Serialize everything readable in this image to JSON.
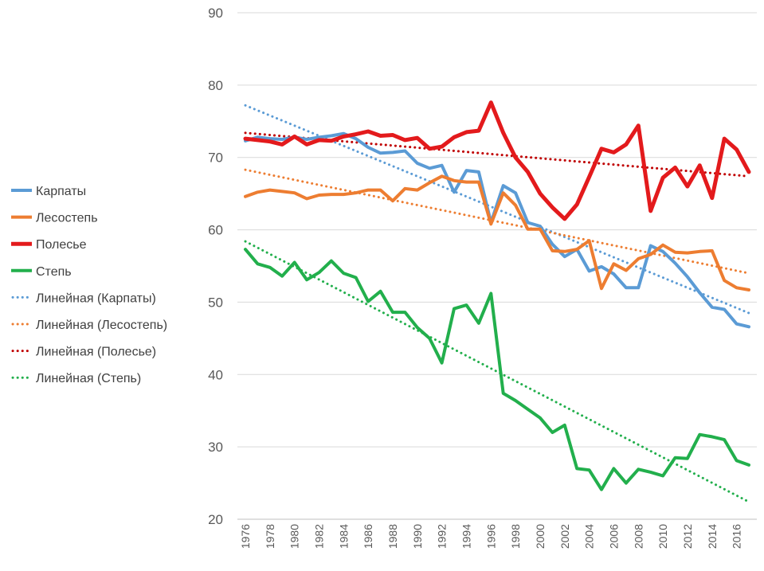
{
  "chart_data": {
    "type": "line",
    "title": "",
    "xlabel": "",
    "ylabel": "",
    "xlim": [
      1976,
      2017
    ],
    "ylim": [
      20,
      90
    ],
    "y_ticks": [
      20,
      30,
      40,
      50,
      60,
      70,
      80,
      90
    ],
    "x_tick_labels": [
      "1976",
      "1978",
      "1980",
      "1982",
      "1984",
      "1986",
      "1988",
      "1990",
      "1992",
      "1994",
      "1996",
      "1998",
      "2000",
      "2002",
      "2004",
      "2006",
      "2008",
      "2010",
      "2012",
      "2014",
      "2016"
    ],
    "grid": "horizontal",
    "legend_position": "left",
    "x": [
      1976,
      1977,
      1978,
      1979,
      1980,
      1981,
      1982,
      1983,
      1984,
      1985,
      1986,
      1987,
      1988,
      1989,
      1990,
      1991,
      1992,
      1993,
      1994,
      1995,
      1996,
      1997,
      1998,
      1999,
      2000,
      2001,
      2002,
      2003,
      2004,
      2005,
      2006,
      2007,
      2008,
      2009,
      2010,
      2011,
      2012,
      2013,
      2014,
      2015,
      2016,
      2017
    ],
    "series": [
      {
        "name": "Карпаты",
        "color": "#5B9BD5",
        "style": "solid",
        "values": [
          72.3,
          72.8,
          72.6,
          72.5,
          72.8,
          72.5,
          72.8,
          73.0,
          73.3,
          72.6,
          71.4,
          70.6,
          70.7,
          70.9,
          69.2,
          68.5,
          68.9,
          65.2,
          68.2,
          68.0,
          61.0,
          66.1,
          65.1,
          61.0,
          60.5,
          58.0,
          56.3,
          57.3,
          54.3,
          54.9,
          53.9,
          52.0,
          52.0,
          57.8,
          57.0,
          55.4,
          53.5,
          51.3,
          49.3,
          49.0,
          47.0,
          46.6
        ]
      },
      {
        "name": "Лесостепь",
        "color": "#ED7D31",
        "style": "solid",
        "values": [
          64.6,
          65.2,
          65.5,
          65.3,
          65.1,
          64.3,
          64.8,
          64.9,
          64.9,
          65.1,
          65.5,
          65.5,
          64.0,
          65.7,
          65.5,
          66.5,
          67.4,
          66.8,
          66.6,
          66.6,
          60.8,
          65.1,
          63.4,
          60.1,
          60.1,
          57.1,
          57.0,
          57.3,
          58.5,
          51.9,
          55.3,
          54.4,
          56.0,
          56.6,
          57.9,
          56.9,
          56.8,
          57.0,
          57.1,
          53.0,
          52.0,
          51.7
        ]
      },
      {
        "name": "Полесье",
        "color": "#E31A1C",
        "style": "solid",
        "values": [
          72.6,
          72.4,
          72.2,
          71.8,
          72.9,
          71.8,
          72.4,
          72.3,
          72.9,
          73.2,
          73.6,
          73.0,
          73.1,
          72.4,
          72.7,
          71.2,
          71.5,
          72.8,
          73.5,
          73.7,
          77.6,
          73.4,
          70.0,
          68.0,
          65.0,
          63.1,
          61.5,
          63.5,
          67.3,
          71.2,
          70.7,
          71.8,
          74.4,
          62.6,
          67.2,
          68.6,
          66.0,
          68.9,
          64.4,
          72.6,
          71.1,
          68.0
        ]
      },
      {
        "name": "Степь",
        "color": "#22AF4C",
        "style": "solid",
        "values": [
          57.3,
          55.3,
          54.8,
          53.6,
          55.5,
          53.1,
          54.1,
          55.7,
          54.0,
          53.4,
          50.1,
          51.5,
          48.6,
          48.6,
          46.5,
          45.0,
          41.6,
          49.1,
          49.6,
          47.1,
          51.2,
          37.4,
          36.4,
          35.2,
          34.0,
          32.0,
          33.0,
          27.0,
          26.8,
          24.1,
          27.0,
          25.0,
          26.9,
          26.5,
          26.0,
          28.5,
          28.4,
          31.7,
          31.4,
          31.0,
          28.1,
          27.5
        ]
      },
      {
        "name": "Линейная (Карпаты)",
        "color": "#5B9BD5",
        "style": "dotted",
        "trend": [
          77.2,
          48.5
        ]
      },
      {
        "name": "Линейная (Лесостепь)",
        "color": "#ED7D31",
        "style": "dotted",
        "trend": [
          68.3,
          54.0
        ]
      },
      {
        "name": "Линейная (Полесье)",
        "color": "#C00000",
        "style": "dotted",
        "trend": [
          73.4,
          67.4
        ]
      },
      {
        "name": "Линейная (Степь)",
        "color": "#22AF4C",
        "style": "dotted",
        "trend": [
          58.4,
          22.4
        ]
      }
    ]
  }
}
